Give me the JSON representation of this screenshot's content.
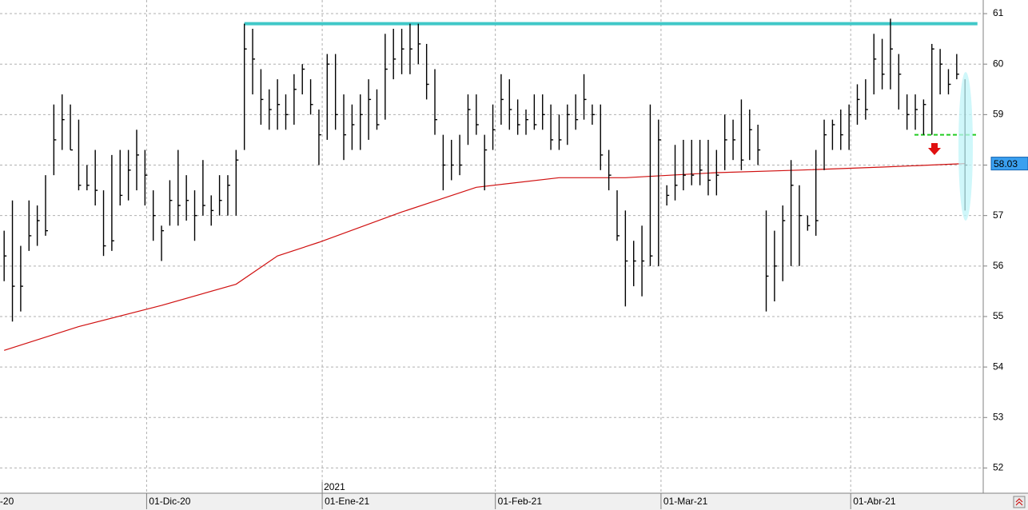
{
  "chart_data": {
    "type": "ohlc",
    "xlim": [
      -0.5,
      118.2
    ],
    "ylim": [
      51.5,
      61.27
    ],
    "yticks": [
      52,
      53,
      54,
      55,
      56,
      57,
      58,
      59,
      60,
      61
    ],
    "xticks": [
      {
        "value": -0.8,
        "label": "-20"
      },
      {
        "value": 17.2,
        "label": "01-Dic-20"
      },
      {
        "value": 38.4,
        "label": "01-Ene-21"
      },
      {
        "value": 59.3,
        "label": "01-Feb-21"
      },
      {
        "value": 79.3,
        "label": "01-Mar-21"
      },
      {
        "value": 102.2,
        "label": "01-Abr-21"
      }
    ],
    "year_marker": {
      "value": 38.4,
      "label": "2021"
    },
    "grid": true,
    "series": [
      {
        "color": "#000000",
        "high": [
          56.7,
          57.3,
          56.4,
          57.3,
          57.2,
          57.8,
          59.2,
          59.4,
          59.2,
          58.9,
          58.0,
          58.3,
          57.5,
          58.2,
          58.3,
          58.3,
          58.7,
          58.3,
          57.5,
          56.8,
          57.7,
          58.3,
          57.8,
          57.5,
          58.1,
          57.4,
          57.8,
          57.8,
          58.3,
          60.8,
          60.7,
          59.9,
          59.5,
          59.7,
          59.4,
          59.8,
          60.0,
          59.7,
          59.1,
          60.2,
          60.2,
          59.4,
          59.2,
          59.4,
          59.7,
          59.5,
          60.6,
          60.7,
          60.7,
          60.8,
          60.8,
          60.4,
          59.9,
          58.6,
          58.5,
          58.6,
          59.4,
          59.4,
          58.6,
          59.2,
          59.8,
          59.7,
          59.3,
          59.1,
          59.4,
          59.4,
          59.2,
          59.0,
          59.2,
          59.4,
          59.8,
          59.2,
          59.2,
          58.3,
          57.5,
          57.1,
          56.5,
          56.8,
          59.2,
          58.9,
          57.6,
          58.4,
          58.5,
          58.5,
          58.5,
          58.5,
          58.3,
          59.0,
          58.9,
          59.3,
          59.1,
          58.8,
          57.1,
          56.7,
          57.2,
          58.1,
          57.6,
          57.0,
          58.3,
          58.9,
          58.9,
          59.1,
          59.2,
          59.6,
          59.7,
          60.6,
          60.5,
          60.9,
          60.2,
          59.4,
          59.4,
          59.3,
          60.4,
          60.3,
          59.9,
          60.2,
          59.7
        ],
        "low": [
          55.7,
          54.9,
          55.1,
          56.3,
          56.4,
          56.6,
          57.8,
          58.3,
          58.3,
          57.5,
          57.5,
          57.2,
          56.2,
          56.3,
          57.2,
          57.3,
          57.5,
          57.2,
          56.5,
          56.1,
          56.8,
          56.8,
          56.9,
          56.5,
          57.0,
          56.8,
          57.0,
          57.0,
          57.0,
          58.3,
          59.4,
          58.8,
          58.7,
          58.7,
          58.7,
          58.8,
          59.4,
          59.0,
          58.0,
          58.5,
          58.7,
          58.1,
          58.3,
          58.3,
          58.5,
          58.7,
          58.9,
          59.7,
          59.8,
          59.8,
          60.0,
          59.3,
          58.6,
          57.5,
          57.7,
          57.8,
          58.4,
          58.6,
          57.5,
          58.3,
          58.8,
          58.7,
          58.6,
          58.6,
          58.7,
          58.7,
          58.3,
          58.3,
          58.4,
          58.7,
          58.9,
          58.8,
          57.9,
          57.5,
          56.5,
          55.2,
          55.6,
          55.4,
          56.0,
          56.0,
          57.2,
          57.3,
          57.5,
          57.6,
          57.6,
          57.4,
          57.4,
          57.9,
          58.1,
          57.9,
          58.1,
          58.0,
          55.1,
          55.3,
          55.7,
          56.0,
          56.0,
          56.7,
          56.6,
          57.9,
          58.3,
          58.3,
          58.3,
          58.8,
          58.9,
          59.4,
          59.5,
          59.5,
          59.1,
          58.7,
          58.7,
          58.6,
          58.6,
          59.4,
          59.4,
          59.7,
          57.1
        ],
        "close": [
          56.2,
          55.6,
          55.6,
          56.6,
          56.9,
          56.7,
          58.5,
          58.9,
          58.3,
          57.6,
          57.6,
          57.5,
          56.4,
          56.5,
          57.4,
          57.9,
          58.2,
          57.8,
          57.0,
          56.7,
          57.3,
          57.2,
          57.3,
          57.0,
          57.2,
          57.1,
          57.3,
          57.6,
          58.1,
          60.3,
          60.1,
          59.3,
          59.1,
          59.2,
          59.0,
          59.5,
          59.9,
          59.2,
          58.6,
          60.0,
          59.0,
          58.6,
          58.8,
          59.0,
          59.3,
          58.8,
          59.9,
          60.1,
          60.3,
          60.3,
          60.4,
          59.6,
          58.9,
          58.0,
          58.0,
          58.0,
          59.1,
          58.8,
          58.3,
          58.7,
          59.3,
          59.1,
          58.8,
          58.9,
          58.8,
          59.0,
          58.5,
          58.5,
          59.0,
          58.9,
          59.3,
          59.0,
          58.2,
          57.8,
          56.6,
          56.1,
          56.1,
          56.1,
          56.2,
          58.5,
          57.4,
          57.6,
          57.8,
          57.8,
          57.9,
          57.7,
          57.8,
          58.5,
          58.5,
          58.1,
          58.7,
          58.3,
          55.8,
          56.0,
          56.9,
          57.6,
          57.0,
          56.8,
          56.9,
          58.6,
          58.8,
          58.6,
          59.0,
          59.3,
          59.1,
          60.1,
          59.8,
          60.3,
          59.8,
          59.0,
          59.1,
          59.2,
          60.3,
          60.0,
          59.6,
          59.8,
          58.0
        ]
      }
    ],
    "moving_average": {
      "color": "#d01010",
      "x": [
        0,
        9,
        19,
        28,
        33,
        38,
        48,
        57,
        67,
        75,
        86,
        96,
        106,
        116
      ],
      "values": [
        54.33,
        54.8,
        55.22,
        55.64,
        56.2,
        56.47,
        57.07,
        57.56,
        57.75,
        57.75,
        57.85,
        57.9,
        57.96,
        58.03
      ]
    },
    "levels": [
      {
        "value": 60.8,
        "from": 29,
        "to": 117.5,
        "color": "#40c8c8",
        "dashed": false
      },
      {
        "value": 58.6,
        "from": 109.9,
        "to": 117.5,
        "color": "#22cc22",
        "dashed": true
      }
    ],
    "last_label": {
      "value": 58.03,
      "label": "58.03"
    }
  }
}
